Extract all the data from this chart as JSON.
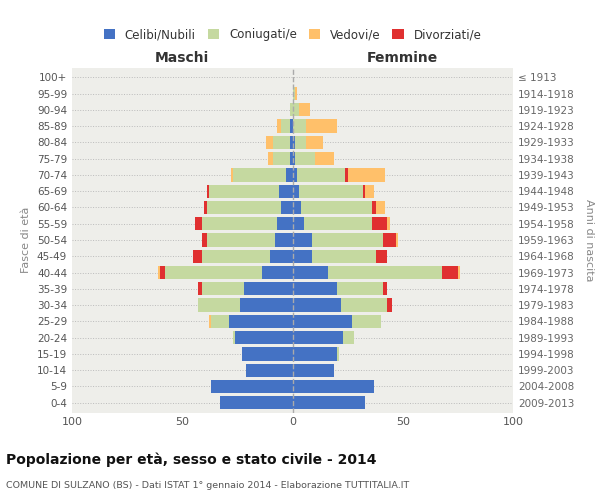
{
  "age_groups": [
    "0-4",
    "5-9",
    "10-14",
    "15-19",
    "20-24",
    "25-29",
    "30-34",
    "35-39",
    "40-44",
    "45-49",
    "50-54",
    "55-59",
    "60-64",
    "65-69",
    "70-74",
    "75-79",
    "80-84",
    "85-89",
    "90-94",
    "95-99",
    "100+"
  ],
  "birth_years": [
    "2009-2013",
    "2004-2008",
    "1999-2003",
    "1994-1998",
    "1989-1993",
    "1984-1988",
    "1979-1983",
    "1974-1978",
    "1969-1973",
    "1964-1968",
    "1959-1963",
    "1954-1958",
    "1949-1953",
    "1944-1948",
    "1939-1943",
    "1934-1938",
    "1929-1933",
    "1924-1928",
    "1919-1923",
    "1914-1918",
    "≤ 1913"
  ],
  "males": {
    "celibi": [
      33,
      37,
      21,
      23,
      26,
      29,
      24,
      22,
      14,
      10,
      8,
      7,
      5,
      6,
      3,
      1,
      1,
      1,
      0,
      0,
      0
    ],
    "coniugati": [
      0,
      0,
      0,
      0,
      1,
      8,
      19,
      19,
      44,
      31,
      31,
      34,
      34,
      32,
      24,
      8,
      8,
      4,
      1,
      0,
      0
    ],
    "vedovi": [
      0,
      0,
      0,
      0,
      0,
      1,
      0,
      0,
      1,
      0,
      0,
      0,
      0,
      0,
      1,
      2,
      3,
      2,
      0,
      0,
      0
    ],
    "divorziati": [
      0,
      0,
      0,
      0,
      0,
      0,
      0,
      2,
      2,
      4,
      2,
      3,
      1,
      1,
      0,
      0,
      0,
      0,
      0,
      0,
      0
    ]
  },
  "females": {
    "nubili": [
      33,
      37,
      19,
      20,
      23,
      27,
      22,
      20,
      16,
      9,
      9,
      5,
      4,
      3,
      2,
      1,
      1,
      0,
      0,
      0,
      0
    ],
    "coniugate": [
      0,
      0,
      0,
      1,
      5,
      13,
      21,
      21,
      52,
      29,
      32,
      31,
      32,
      29,
      22,
      9,
      5,
      6,
      3,
      1,
      0
    ],
    "vedove": [
      0,
      0,
      0,
      0,
      0,
      0,
      0,
      0,
      1,
      0,
      1,
      1,
      4,
      4,
      17,
      9,
      8,
      14,
      5,
      1,
      0
    ],
    "divorziate": [
      0,
      0,
      0,
      0,
      0,
      0,
      2,
      2,
      7,
      5,
      6,
      7,
      2,
      1,
      1,
      0,
      0,
      0,
      0,
      0,
      0
    ]
  },
  "color_celibi": "#4472c4",
  "color_coniugati": "#c5d9a0",
  "color_vedovi": "#ffc06a",
  "color_divorziati": "#e03030",
  "xlim": 100,
  "title": "Popolazione per età, sesso e stato civile - 2014",
  "subtitle": "COMUNE DI SULZANO (BS) - Dati ISTAT 1° gennaio 2014 - Elaborazione TUTTITALIA.IT",
  "ylabel_left": "Fasce di età",
  "ylabel_right": "Anni di nascita",
  "xlabel_left": "Maschi",
  "xlabel_right": "Femmine",
  "bg_color": "#eeeeea",
  "grid_color": "#bbbbbb"
}
